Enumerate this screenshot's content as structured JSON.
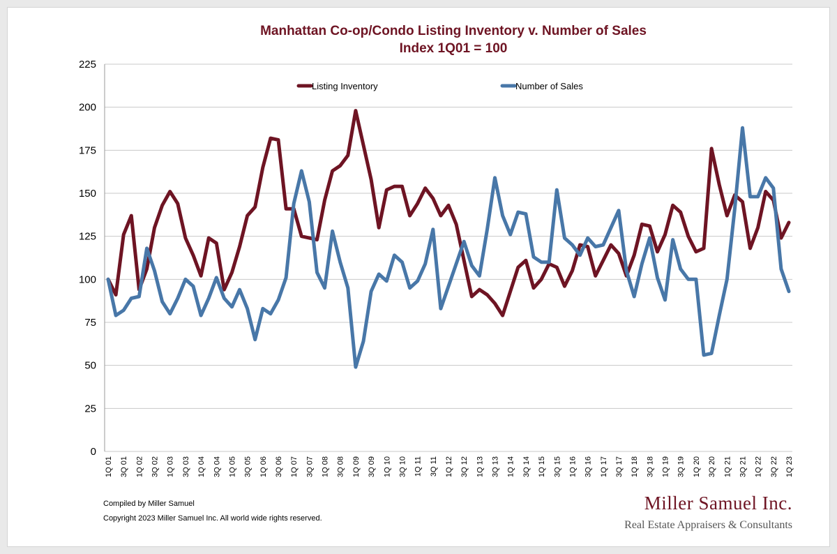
{
  "chart_data": {
    "type": "line",
    "title": "Manhattan Co-op/Condo Listing Inventory v. Number of Sales",
    "subtitle": "Index 1Q01 = 100",
    "ylim": [
      0,
      225
    ],
    "yticks": [
      0,
      25,
      50,
      75,
      100,
      125,
      150,
      175,
      200,
      225
    ],
    "grid": true,
    "legend_position": "top",
    "x": [
      "1Q 01",
      "2Q 01",
      "3Q 01",
      "4Q 01",
      "1Q 02",
      "2Q 02",
      "3Q 02",
      "4Q 02",
      "1Q 03",
      "2Q 03",
      "3Q 03",
      "4Q 03",
      "1Q 04",
      "2Q 04",
      "3Q 04",
      "4Q 04",
      "1Q 05",
      "2Q 05",
      "3Q 05",
      "4Q 05",
      "1Q 06",
      "2Q 06",
      "3Q 06",
      "4Q 06",
      "1Q 07",
      "2Q 07",
      "3Q 07",
      "4Q 07",
      "1Q 08",
      "2Q 08",
      "3Q 08",
      "4Q 08",
      "1Q 09",
      "2Q 09",
      "3Q 09",
      "4Q 09",
      "1Q 10",
      "2Q 10",
      "3Q 10",
      "4Q 10",
      "1Q 11",
      "2Q 11",
      "3Q 11",
      "4Q 11",
      "1Q 12",
      "2Q 12",
      "3Q 12",
      "4Q 12",
      "1Q 13",
      "2Q 13",
      "3Q 13",
      "4Q 13",
      "1Q 14",
      "2Q 14",
      "3Q 14",
      "4Q 14",
      "1Q 15",
      "2Q 15",
      "3Q 15",
      "4Q 15",
      "1Q 16",
      "2Q 16",
      "3Q 16",
      "4Q 16",
      "1Q 17",
      "2Q 17",
      "3Q 17",
      "4Q 17",
      "1Q 18",
      "2Q 18",
      "3Q 18",
      "4Q 18",
      "1Q 19",
      "2Q 19",
      "3Q 19",
      "4Q 19",
      "1Q 20",
      "2Q 20",
      "3Q 20",
      "4Q 20",
      "1Q 21",
      "2Q 21",
      "3Q 21",
      "4Q 21",
      "1Q 22",
      "2Q 22",
      "3Q 22",
      "4Q 22",
      "1Q 23"
    ],
    "x_tick_labels": [
      "1Q 01",
      "",
      "3Q 01",
      "",
      "1Q 02",
      "",
      "3Q 02",
      "",
      "1Q 03",
      "",
      "3Q 03",
      "",
      "1Q 04",
      "",
      "3Q 04",
      "",
      "1Q 05",
      "",
      "3Q 05",
      "",
      "1Q 06",
      "",
      "3Q 06",
      "",
      "1Q 07",
      "",
      "3Q 07",
      "",
      "1Q 08",
      "",
      "3Q 08",
      "",
      "1Q 09",
      "",
      "3Q 09",
      "",
      "1Q 10",
      "",
      "3Q 10",
      "",
      "1Q 11",
      "",
      "3Q 11",
      "",
      "1Q 12",
      "",
      "3Q 12",
      "",
      "1Q 13",
      "",
      "3Q 13",
      "",
      "1Q 14",
      "",
      "3Q 14",
      "",
      "1Q 15",
      "",
      "3Q 15",
      "",
      "1Q 16",
      "",
      "3Q 16",
      "",
      "1Q 17",
      "",
      "3Q 17",
      "",
      "1Q 18",
      "",
      "3Q 18",
      "",
      "1Q 19",
      "",
      "3Q 19",
      "",
      "1Q 20",
      "",
      "3Q 20",
      "",
      "1Q 21",
      "",
      "3Q 21",
      "",
      "1Q 22",
      "",
      "3Q 22",
      "",
      "1Q 23"
    ],
    "series": [
      {
        "name": "Listing Inventory",
        "color": "#6e1423",
        "values": [
          100,
          91,
          126,
          137,
          94,
          106,
          130,
          143,
          151,
          144,
          124,
          114,
          102,
          124,
          121,
          94,
          104,
          119,
          137,
          142,
          165,
          182,
          181,
          141,
          141,
          125,
          124,
          123,
          146,
          163,
          166,
          172,
          198,
          178,
          158,
          130,
          152,
          154,
          154,
          137,
          144,
          153,
          147,
          137,
          143,
          132,
          111,
          90,
          94,
          91,
          86,
          79,
          93,
          107,
          111,
          95,
          100,
          109,
          107,
          96,
          105,
          120,
          119,
          102,
          111,
          120,
          115,
          102,
          114,
          132,
          131,
          116,
          126,
          143,
          139,
          125,
          116,
          118,
          176,
          155,
          137,
          149,
          145,
          118,
          130,
          151,
          146,
          124,
          133
        ]
      },
      {
        "name": "Number of Sales",
        "color": "#4877a8",
        "values": [
          100,
          79,
          82,
          89,
          90,
          118,
          105,
          87,
          80,
          89,
          100,
          96,
          79,
          89,
          101,
          89,
          84,
          94,
          83,
          65,
          83,
          80,
          88,
          101,
          144,
          163,
          145,
          104,
          95,
          128,
          110,
          95,
          49,
          64,
          93,
          103,
          99,
          114,
          110,
          95,
          99,
          109,
          129,
          83,
          96,
          109,
          122,
          108,
          102,
          129,
          159,
          137,
          126,
          139,
          138,
          113,
          110,
          110,
          152,
          124,
          120,
          114,
          124,
          119,
          120,
          130,
          140,
          105,
          90,
          109,
          124,
          101,
          88,
          123,
          106,
          100,
          100,
          56,
          57,
          79,
          100,
          141,
          188,
          148,
          148,
          159,
          153,
          106,
          93
        ]
      }
    ]
  },
  "footer": {
    "compiled_by": "Compiled by Miller Samuel",
    "copyright": "Copyright 2023 Miller Samuel Inc.  All world wide rights reserved."
  },
  "logo": {
    "name": "Miller Samuel Inc.",
    "tagline": "Real Estate Appraisers & Consultants"
  }
}
